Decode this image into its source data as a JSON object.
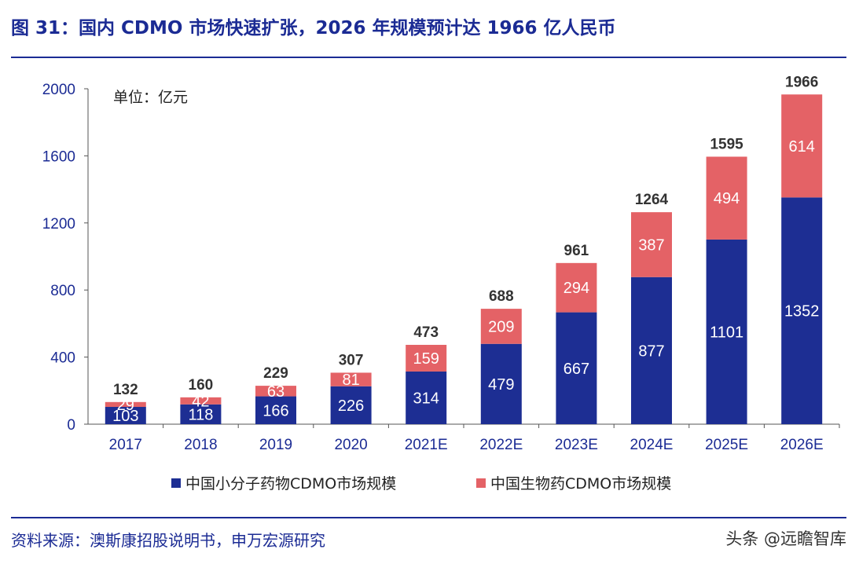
{
  "figure_title": "图 31：国内 CDMO 市场快速扩张，2026 年规模预计达 1966 亿人民币",
  "source_note": "资料来源：澳斯康招股说明书，申万宏源研究",
  "watermark": "头条 @远瞻智库",
  "colors": {
    "brand": "#1b2b94",
    "small_molecule": "#1d2e93",
    "biologics": "#e46266"
  },
  "chart_data": {
    "type": "bar",
    "stacked": true,
    "unit_label": "单位：亿元",
    "categories": [
      "2017",
      "2018",
      "2019",
      "2020",
      "2021E",
      "2022E",
      "2023E",
      "2024E",
      "2025E",
      "2026E"
    ],
    "series": [
      {
        "name": "中国小分子药物CDMO市场规模",
        "values": [
          103,
          118,
          166,
          226,
          314,
          479,
          667,
          877,
          1101,
          1352
        ]
      },
      {
        "name": "中国生物药CDMO市场规模",
        "values": [
          29,
          42,
          63,
          81,
          159,
          209,
          294,
          387,
          494,
          614
        ]
      }
    ],
    "totals": [
      132,
      160,
      229,
      307,
      473,
      688,
      961,
      1264,
      1595,
      1966
    ],
    "y_ticks": [
      0,
      400,
      800,
      1200,
      1600,
      2000
    ],
    "ylim": [
      0,
      2000
    ],
    "grid": false,
    "legend_position": "bottom"
  }
}
